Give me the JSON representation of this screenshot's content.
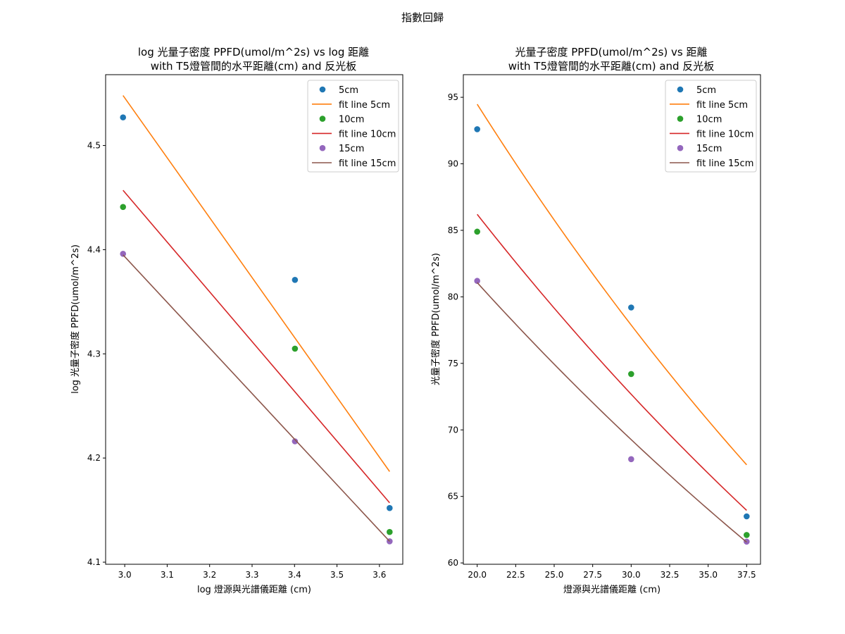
{
  "figure": {
    "suptitle": "指數回歸"
  },
  "chart_data": [
    {
      "type": "scatter",
      "title_line1": "log 光量子密度 PPFD(umol/m^2s) vs log 距離",
      "title_line2": "with T5燈管間的水平距離(cm) and 反光板",
      "xlabel": "log 燈源與光譜儀距離 (cm)",
      "ylabel": "log 光量子密度 PPFD(umol/m^2s)",
      "xlim": [
        2.955,
        3.655
      ],
      "ylim": [
        4.098,
        4.568
      ],
      "xticks": [
        3.0,
        3.1,
        3.2,
        3.3,
        3.4,
        3.5,
        3.6
      ],
      "xtick_labels": [
        "3.0",
        "3.1",
        "3.2",
        "3.3",
        "3.4",
        "3.5",
        "3.6"
      ],
      "yticks": [
        4.1,
        4.2,
        4.3,
        4.4,
        4.5
      ],
      "ytick_labels": [
        "4.1",
        "4.2",
        "4.3",
        "4.4",
        "4.5"
      ],
      "legend_position": "upper right",
      "series": [
        {
          "name": "5cm",
          "kind": "points",
          "color": "#1f77b4",
          "x": [
            2.996,
            3.401,
            3.624
          ],
          "y": [
            4.527,
            4.371,
            4.152
          ]
        },
        {
          "name": "fit line 5cm",
          "kind": "line",
          "color": "#ff7f0e",
          "x": [
            2.996,
            3.624
          ],
          "y": [
            4.548,
            4.187
          ]
        },
        {
          "name": "10cm",
          "kind": "points",
          "color": "#2ca02c",
          "x": [
            2.996,
            3.401,
            3.624
          ],
          "y": [
            4.441,
            4.305,
            4.129
          ]
        },
        {
          "name": "fit line 10cm",
          "kind": "line",
          "color": "#d62728",
          "x": [
            2.996,
            3.624
          ],
          "y": [
            4.457,
            4.157
          ]
        },
        {
          "name": "15cm",
          "kind": "points",
          "color": "#9467bd",
          "x": [
            2.996,
            3.401,
            3.624
          ],
          "y": [
            4.396,
            4.216,
            4.12
          ]
        },
        {
          "name": "fit line 15cm",
          "kind": "line",
          "color": "#8c564b",
          "x": [
            2.996,
            3.624
          ],
          "y": [
            4.395,
            4.12
          ]
        }
      ]
    },
    {
      "type": "scatter",
      "title_line1": "光量子密度 PPFD(umol/m^2s) vs 距離",
      "title_line2": "with T5燈管間的水平距離(cm) and 反光板",
      "xlabel": "燈源與光譜儀距離 (cm)",
      "ylabel": "光量子密度 PPFD(umol/m^2s)",
      "xlim": [
        19.1,
        38.4
      ],
      "ylim": [
        59.9,
        96.7
      ],
      "xticks": [
        20.0,
        22.5,
        25.0,
        27.5,
        30.0,
        32.5,
        35.0,
        37.5
      ],
      "xtick_labels": [
        "20.0",
        "22.5",
        "25.0",
        "27.5",
        "30.0",
        "32.5",
        "35.0",
        "37.5"
      ],
      "yticks": [
        60,
        65,
        70,
        75,
        80,
        85,
        90,
        95
      ],
      "ytick_labels": [
        "60",
        "65",
        "70",
        "75",
        "80",
        "85",
        "90",
        "95"
      ],
      "legend_position": "upper right",
      "series": [
        {
          "name": "5cm",
          "kind": "points",
          "color": "#1f77b4",
          "x": [
            20,
            30,
            37.5
          ],
          "y": [
            92.6,
            79.2,
            63.5
          ]
        },
        {
          "name": "fit line 5cm",
          "kind": "curve",
          "color": "#ff7f0e",
          "a": 94.48,
          "b": -0.01932,
          "x0": 20,
          "x1": 37.5
        },
        {
          "name": "10cm",
          "kind": "points",
          "color": "#2ca02c",
          "x": [
            20,
            30,
            37.5
          ],
          "y": [
            84.9,
            74.2,
            62.1
          ]
        },
        {
          "name": "fit line 10cm",
          "kind": "curve",
          "color": "#d62728",
          "a": 86.2,
          "b": -0.01706,
          "x0": 20,
          "x1": 37.5
        },
        {
          "name": "15cm",
          "kind": "points",
          "color": "#9467bd",
          "x": [
            20,
            30,
            37.5
          ],
          "y": [
            81.2,
            67.8,
            61.6
          ]
        },
        {
          "name": "fit line 15cm",
          "kind": "curve",
          "color": "#8c564b",
          "a": 81.07,
          "b": -0.01573,
          "x0": 20,
          "x1": 37.5
        }
      ]
    }
  ]
}
